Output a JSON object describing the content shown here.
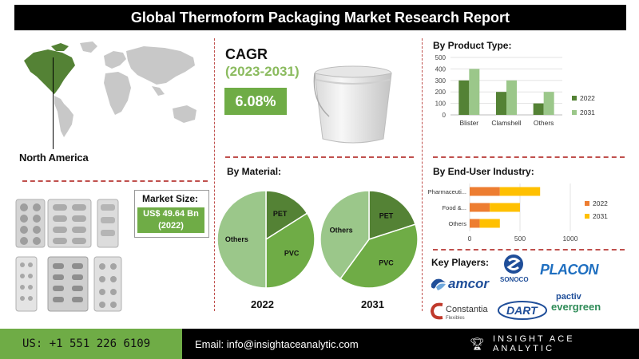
{
  "header": {
    "title": "Global Thermoform Packaging Market Research Report"
  },
  "region": {
    "label": "North America"
  },
  "cagr": {
    "title": "CAGR",
    "years": "(2023-2031)",
    "value": "6.08%"
  },
  "market_size": {
    "label": "Market Size:",
    "value_line1": "US$ 49.64 Bn",
    "value_line2": "(2022)"
  },
  "sections": {
    "by_product": "By Product Type:",
    "by_material": "By Material:",
    "by_end_user": "By End-User Industry:",
    "key_players": "Key Players:"
  },
  "colors": {
    "dark_green": "#548235",
    "light_green": "#9bc78a",
    "accent_green": "#6fac46",
    "orange": "#ed7d31",
    "yellow": "#ffc000",
    "red_dash": "#c0504d"
  },
  "chart_data": [
    {
      "type": "bar",
      "title": "By Product Type:",
      "categories": [
        "Blister",
        "Clamshell",
        "Others"
      ],
      "series": [
        {
          "name": "2022",
          "values": [
            300,
            200,
            100
          ]
        },
        {
          "name": "2031",
          "values": [
            400,
            300,
            200
          ]
        }
      ],
      "yticks": [
        "0",
        "100",
        "200",
        "300",
        "400",
        "500"
      ],
      "ylim": [
        0,
        500
      ],
      "legend": "right",
      "grid": true
    },
    {
      "type": "bar",
      "orientation": "horizontal",
      "stacked": true,
      "title": "By End-User Industry:",
      "categories": [
        "Pharmaceuti...",
        "Food &...",
        "Others"
      ],
      "series": [
        {
          "name": "2022",
          "values": [
            300,
            200,
            100
          ]
        },
        {
          "name": "2031",
          "values": [
            400,
            300,
            200
          ]
        }
      ],
      "xticks": [
        "0",
        "500",
        "1000"
      ],
      "xlim": [
        0,
        1000
      ],
      "legend": "right",
      "grid": true
    },
    {
      "type": "pie",
      "title": "By Material:",
      "label": "2022",
      "slices": [
        {
          "name": "PET",
          "value": 16
        },
        {
          "name": "PVC",
          "value": 34
        },
        {
          "name": "Others",
          "value": 50
        }
      ]
    },
    {
      "type": "pie",
      "title": "By Material:",
      "label": "2031",
      "slices": [
        {
          "name": "PET",
          "value": 20
        },
        {
          "name": "PVC",
          "value": 40
        },
        {
          "name": "Others",
          "value": 40
        }
      ]
    }
  ],
  "key_players": {
    "sonoco": "SONOCO",
    "placon": "PLACON",
    "amcor": "amcor",
    "pactiv_1": "pactiv",
    "pactiv_2": "evergreen",
    "constantia_1": "Constantia",
    "constantia_2": "Flexibles",
    "dart": "DART"
  },
  "footer": {
    "phone": "US: +1 551 226 6109",
    "email": "Email: info@insightaceanalytic.com",
    "brand": "INSIGHT ACE ANALYTIC"
  }
}
